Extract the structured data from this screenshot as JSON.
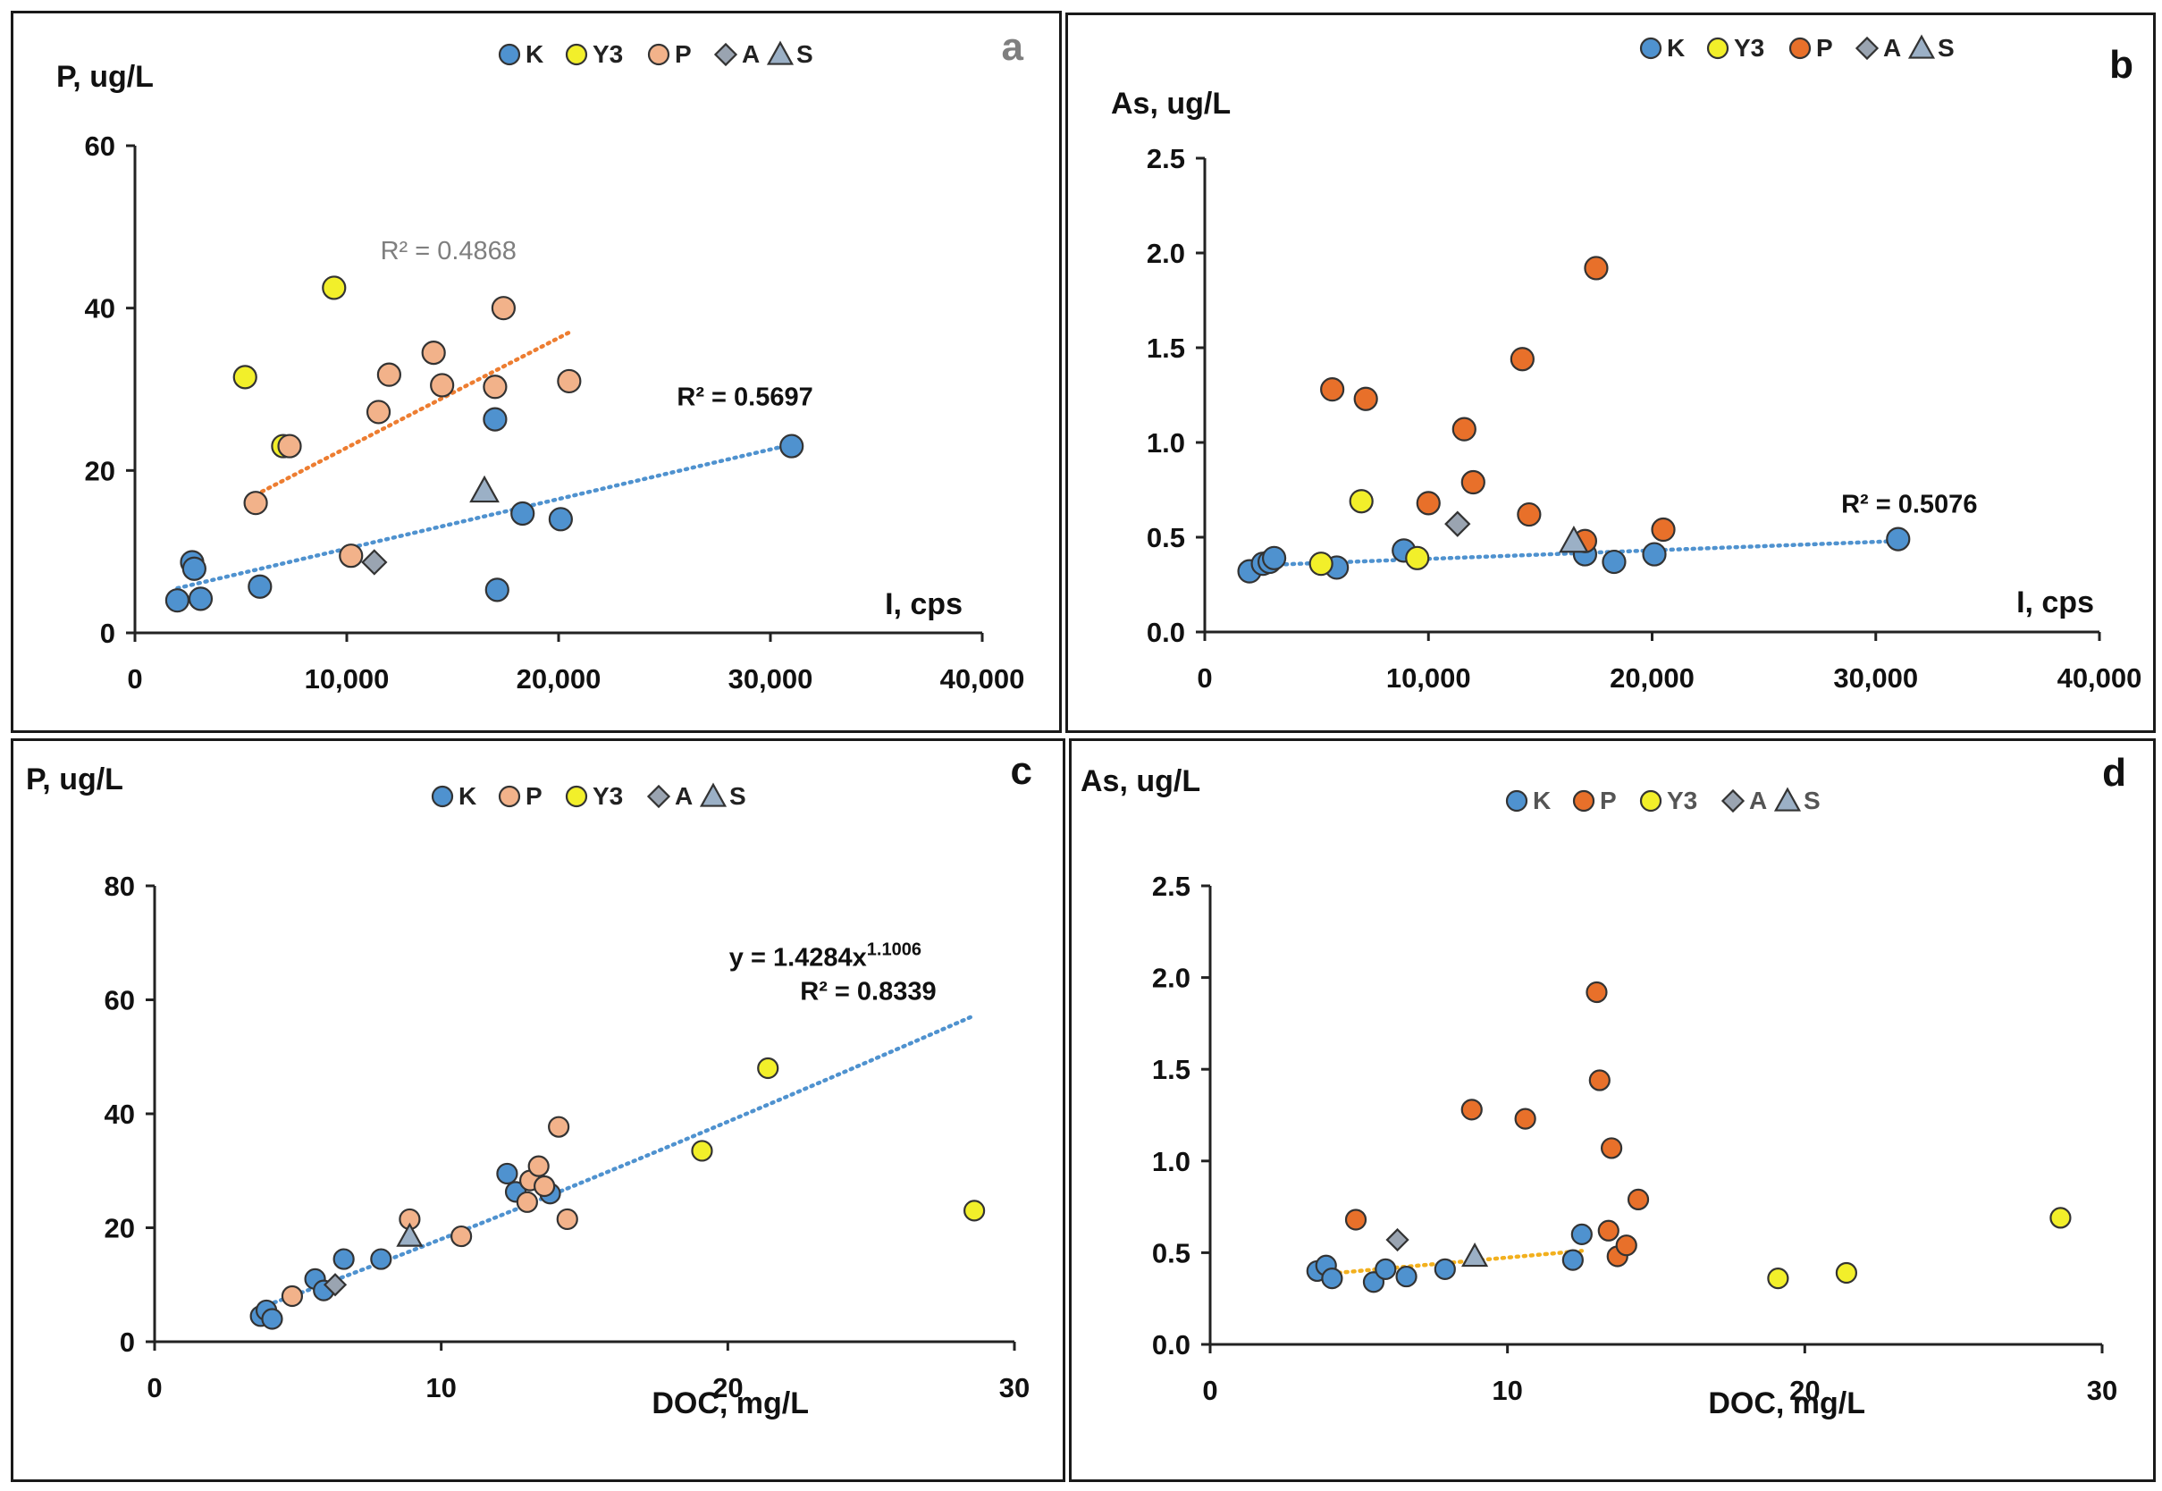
{
  "colors": {
    "K": "#4f92cf",
    "Y3": "#f2ef2a",
    "P_light": "#f2b28a",
    "P_dark": "#e8702a",
    "A": "#9aa4b1",
    "S": "#9bb0c6",
    "trend_blue": "#4f92cf",
    "trend_orange": "#ed7d31",
    "trend_yellow": "#f2b01e"
  },
  "chart_data": [
    {
      "id": "a",
      "type": "scatter",
      "letter": "a",
      "ylabel": "P, ug/L",
      "xlabel": "I, cps",
      "xlim": [
        0,
        40000
      ],
      "ylim": [
        0,
        60
      ],
      "xticks": [
        0,
        10000,
        20000,
        30000,
        40000
      ],
      "xtick_labels": [
        "0",
        "10,000",
        "20,000",
        "30,000",
        "40,000"
      ],
      "yticks": [
        0,
        20,
        40,
        60
      ],
      "ytick_labels": [
        "0",
        "20",
        "40",
        "60"
      ],
      "legend": [
        {
          "marker": "circle",
          "color": "K",
          "text": "K"
        },
        {
          "marker": "circle",
          "color": "Y3",
          "text": "Y3"
        },
        {
          "marker": "circle",
          "color": "P_light",
          "text": "P"
        },
        {
          "marker": "diamond",
          "color": "A",
          "text": "A"
        },
        {
          "marker": "triangle",
          "color": "S",
          "text": "S"
        }
      ],
      "series": [
        {
          "name": "K",
          "color": "K",
          "marker": "circle",
          "x": [
            2000,
            2700,
            2800,
            3100,
            5900,
            17000,
            17100,
            18300,
            20100,
            31000
          ],
          "y": [
            4,
            8.7,
            7.9,
            4.2,
            5.7,
            26.3,
            5.3,
            14.7,
            14,
            23
          ]
        },
        {
          "name": "Y3",
          "color": "Y3",
          "marker": "circle",
          "x": [
            5200,
            7000,
            9400
          ],
          "y": [
            31.5,
            23,
            42.5
          ]
        },
        {
          "name": "P",
          "color": "P_light",
          "marker": "circle",
          "x": [
            5700,
            7300,
            10200,
            11500,
            12000,
            14100,
            14500,
            17000,
            17400,
            20500
          ],
          "y": [
            16,
            23,
            9.5,
            27.2,
            31.8,
            34.5,
            30.5,
            30.3,
            40,
            31
          ]
        },
        {
          "name": "A",
          "color": "A",
          "marker": "diamond",
          "x": [
            11300
          ],
          "y": [
            8.7
          ]
        },
        {
          "name": "S",
          "color": "S",
          "marker": "triangle",
          "x": [
            16500
          ],
          "y": [
            17.5
          ]
        }
      ],
      "trendlines": [
        {
          "color": "trend_orange",
          "x1": 5700,
          "y1": 17,
          "x2": 20500,
          "y2": 37,
          "kind": "line"
        },
        {
          "color": "trend_blue",
          "x1": 2000,
          "y1": 5.5,
          "x2": 31000,
          "y2": 23.2,
          "kind": "line"
        }
      ],
      "annotations": [
        {
          "text": "R² = 0.4868",
          "at_x": 14800,
          "at_y": 46,
          "style": "grey"
        },
        {
          "text": "R² = 0.5697",
          "at_x": 28800,
          "at_y": 28,
          "style": "bold"
        }
      ]
    },
    {
      "id": "b",
      "type": "scatter",
      "letter": "b",
      "ylabel": "As, ug/L",
      "xlabel": "I, cps",
      "xlim": [
        0,
        40000
      ],
      "ylim": [
        0,
        2.5
      ],
      "xticks": [
        0,
        10000,
        20000,
        30000,
        40000
      ],
      "xtick_labels": [
        "0",
        "10,000",
        "20,000",
        "30,000",
        "40,000"
      ],
      "yticks": [
        0,
        0.5,
        1,
        1.5,
        2,
        2.5
      ],
      "ytick_labels": [
        "0.0",
        "0.5",
        "1.0",
        "1.5",
        "2.0",
        "2.5"
      ],
      "legend": [
        {
          "marker": "circle",
          "color": "K",
          "text": "K"
        },
        {
          "marker": "circle",
          "color": "Y3",
          "text": "Y3"
        },
        {
          "marker": "circle",
          "color": "P_dark",
          "text": "P"
        },
        {
          "marker": "diamond",
          "color": "A",
          "text": "A"
        },
        {
          "marker": "triangle",
          "color": "S",
          "text": "S"
        }
      ],
      "series": [
        {
          "name": "K",
          "color": "K",
          "marker": "circle",
          "x": [
            2000,
            2600,
            2900,
            3100,
            5900,
            8900,
            17000,
            18300,
            20100,
            31000
          ],
          "y": [
            0.32,
            0.36,
            0.37,
            0.39,
            0.34,
            0.43,
            0.41,
            0.37,
            0.41,
            0.49
          ]
        },
        {
          "name": "Y3",
          "color": "Y3",
          "marker": "circle",
          "x": [
            5200,
            7000,
            9500
          ],
          "y": [
            0.36,
            0.69,
            0.39
          ]
        },
        {
          "name": "P",
          "color": "P_dark",
          "marker": "circle",
          "x": [
            5700,
            7200,
            10000,
            11600,
            12000,
            14200,
            14500,
            17000,
            17500,
            20500
          ],
          "y": [
            1.28,
            1.23,
            0.68,
            1.07,
            0.79,
            1.44,
            0.62,
            0.48,
            1.92,
            0.54
          ]
        },
        {
          "name": "A",
          "color": "A",
          "marker": "diamond",
          "x": [
            11300
          ],
          "y": [
            0.57
          ]
        },
        {
          "name": "S",
          "color": "S",
          "marker": "triangle",
          "x": [
            16500
          ],
          "y": [
            0.48
          ]
        }
      ],
      "trendlines": [
        {
          "color": "trend_blue",
          "x1": 2000,
          "y1": 0.35,
          "x2": 31000,
          "y2": 0.48,
          "kind": "line"
        }
      ],
      "annotations": [
        {
          "text": "R² = 0.5076",
          "at_x": 31500,
          "at_y": 0.63,
          "style": "bold"
        }
      ]
    },
    {
      "id": "c",
      "type": "scatter",
      "letter": "c",
      "ylabel": "P, ug/L",
      "xlabel": "DOC, mg/L",
      "xlim": [
        0,
        30
      ],
      "ylim": [
        0,
        80
      ],
      "xticks": [
        0,
        10,
        20,
        30
      ],
      "xtick_labels": [
        "0",
        "10",
        "20",
        "30"
      ],
      "yticks": [
        0,
        20,
        40,
        60,
        80
      ],
      "ytick_labels": [
        "0",
        "20",
        "40",
        "60",
        "80"
      ],
      "legend": [
        {
          "marker": "circle",
          "color": "K",
          "text": "K"
        },
        {
          "marker": "circle",
          "color": "P_light",
          "text": "P"
        },
        {
          "marker": "circle",
          "color": "Y3",
          "text": "Y3"
        },
        {
          "marker": "diamond",
          "color": "A",
          "text": "A"
        },
        {
          "marker": "triangle",
          "color": "S",
          "text": "S"
        }
      ],
      "series": [
        {
          "name": "K",
          "color": "K",
          "marker": "circle",
          "x": [
            3.7,
            3.9,
            4.1,
            5.6,
            5.9,
            6.6,
            7.9,
            12.3,
            12.6,
            13.8
          ],
          "y": [
            4.5,
            5.5,
            4,
            11,
            9,
            14.5,
            14.5,
            29.5,
            26.3,
            26
          ],
          "x_extra_note": ""
        },
        {
          "name": "P",
          "color": "P_light",
          "marker": "circle",
          "x": [
            4.8,
            8.9,
            10.7,
            13.0,
            13.1,
            13.4,
            13.6,
            14.1,
            14.4
          ],
          "y": [
            8,
            21.5,
            18.5,
            24.5,
            28.3,
            30.8,
            27.3,
            37.7,
            21.5
          ]
        },
        {
          "name": "Y3",
          "color": "Y3",
          "marker": "circle",
          "x": [
            19.1,
            21.4,
            28.6
          ],
          "y": [
            33.5,
            48,
            23
          ]
        },
        {
          "name": "A",
          "color": "A",
          "marker": "diamond",
          "x": [
            6.3
          ],
          "y": [
            10
          ]
        },
        {
          "name": "S",
          "color": "S",
          "marker": "triangle",
          "x": [
            8.9
          ],
          "y": [
            18.5
          ]
        }
      ],
      "trendlines": [
        {
          "color": "trend_blue",
          "kind": "power",
          "a": 1.4284,
          "b": 1.1006,
          "x1": 3.7,
          "x2": 28.6
        }
      ],
      "annotations": [
        {
          "text": "y = 1.4284x",
          "sup": "1.1006",
          "at_x": 23.4,
          "at_y": 66,
          "style": "bold"
        },
        {
          "text": "R² = 0.8339",
          "at_x": 24.9,
          "at_y": 60,
          "style": "bold"
        }
      ]
    },
    {
      "id": "d",
      "type": "scatter",
      "letter": "d",
      "ylabel": "As, ug/L",
      "xlabel": "DOC, mg/L",
      "xlim": [
        0,
        30
      ],
      "ylim": [
        0,
        2.5
      ],
      "xticks": [
        0,
        10,
        20,
        30
      ],
      "xtick_labels": [
        "0",
        "10",
        "20",
        "30"
      ],
      "yticks": [
        0,
        0.5,
        1,
        1.5,
        2,
        2.5
      ],
      "ytick_labels": [
        "0.0",
        "0.5",
        "1.0",
        "1.5",
        "2.0",
        "2.5"
      ],
      "legend": [
        {
          "marker": "circle",
          "color": "K",
          "text": "K"
        },
        {
          "marker": "circle",
          "color": "P_dark",
          "text": "P"
        },
        {
          "marker": "circle",
          "color": "Y3",
          "text": "Y3"
        },
        {
          "marker": "diamond",
          "color": "A",
          "text": "A"
        },
        {
          "marker": "triangle",
          "color": "S",
          "text": "S"
        }
      ],
      "series": [
        {
          "name": "K",
          "color": "K",
          "marker": "circle",
          "x": [
            3.6,
            3.9,
            4.1,
            5.5,
            5.9,
            6.6,
            7.9,
            12.2,
            12.5
          ],
          "y": [
            0.4,
            0.43,
            0.36,
            0.34,
            0.41,
            0.37,
            0.41,
            0.46,
            0.6
          ]
        },
        {
          "name": "P",
          "color": "P_dark",
          "marker": "circle",
          "x": [
            4.9,
            8.8,
            10.6,
            13.0,
            13.1,
            13.4,
            13.5,
            13.7,
            14.0,
            14.4
          ],
          "y": [
            0.68,
            1.28,
            1.23,
            1.92,
            1.44,
            0.62,
            1.07,
            0.48,
            0.54,
            0.79
          ]
        },
        {
          "name": "Y3",
          "color": "Y3",
          "marker": "circle",
          "x": [
            19.1,
            21.4,
            28.6
          ],
          "y": [
            0.36,
            0.39,
            0.69
          ]
        },
        {
          "name": "A",
          "color": "A",
          "marker": "diamond",
          "x": [
            6.3
          ],
          "y": [
            0.57
          ]
        },
        {
          "name": "S",
          "color": "S",
          "marker": "triangle",
          "x": [
            8.9
          ],
          "y": [
            0.48
          ]
        }
      ],
      "trendlines": [
        {
          "color": "trend_yellow",
          "x1": 3.6,
          "y1": 0.38,
          "x2": 12.5,
          "y2": 0.51,
          "kind": "line"
        }
      ],
      "annotations": []
    }
  ]
}
